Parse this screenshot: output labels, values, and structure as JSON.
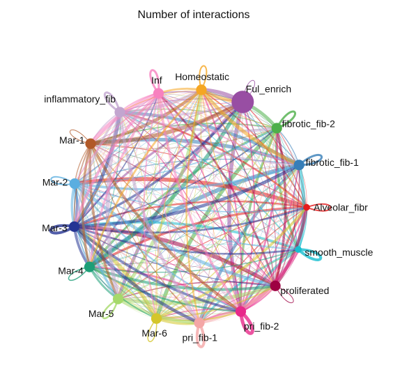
{
  "chart_data": {
    "type": "network",
    "title": "Number of interactions",
    "layout": "circle",
    "nodes": [
      {
        "name": "Ful_enrich",
        "color": "#984EA3",
        "size": 5
      },
      {
        "name": "fibrotic_fib-2",
        "color": "#4DAF4A",
        "size": 2
      },
      {
        "name": "fibrotic_fib-1",
        "color": "#377EB8",
        "size": 2
      },
      {
        "name": "Alveolar_fibr",
        "color": "#E41A1C",
        "size": 1
      },
      {
        "name": "smooth_muscle",
        "color": "#17BECF",
        "size": 1
      },
      {
        "name": "proliferated",
        "color": "#9E0142",
        "size": 2
      },
      {
        "name": "pri_fib-2",
        "color": "#E7298A",
        "size": 2
      },
      {
        "name": "pri_fib-1",
        "color": "#F4A6A6",
        "size": 2
      },
      {
        "name": "Mar-6",
        "color": "#D4C62A",
        "size": 2
      },
      {
        "name": "Mar-5",
        "color": "#A6D96A",
        "size": 2
      },
      {
        "name": "Mar-4",
        "color": "#1B9E77",
        "size": 2
      },
      {
        "name": "Mar-3",
        "color": "#253494",
        "size": 2
      },
      {
        "name": "Mar-2",
        "color": "#5AAEE0",
        "size": 2
      },
      {
        "name": "Mar-1",
        "color": "#B15928",
        "size": 2
      },
      {
        "name": "inflammatory_fib",
        "color": "#C2A5CF",
        "size": 2
      },
      {
        "name": "Inf",
        "color": "#F781BF",
        "size": 2
      },
      {
        "name": "Homeostatic",
        "color": "#F5A623",
        "size": 2
      }
    ],
    "self_loops": {
      "Ful_enrich": 1,
      "fibrotic_fib-2": 3,
      "fibrotic_fib-1": 3,
      "Alveolar_fibr": 2,
      "smooth_muscle": 4,
      "proliferated": 1,
      "pri_fib-2": 5,
      "pri_fib-1": 4,
      "Mar-6": 1.5,
      "Mar-5": 2.5,
      "Mar-4": 1.5,
      "Mar-3": 4,
      "Mar-2": 2,
      "Mar-1": 1,
      "inflammatory_fib": 3,
      "Inf": 3,
      "Homeostatic": 2
    }
  }
}
